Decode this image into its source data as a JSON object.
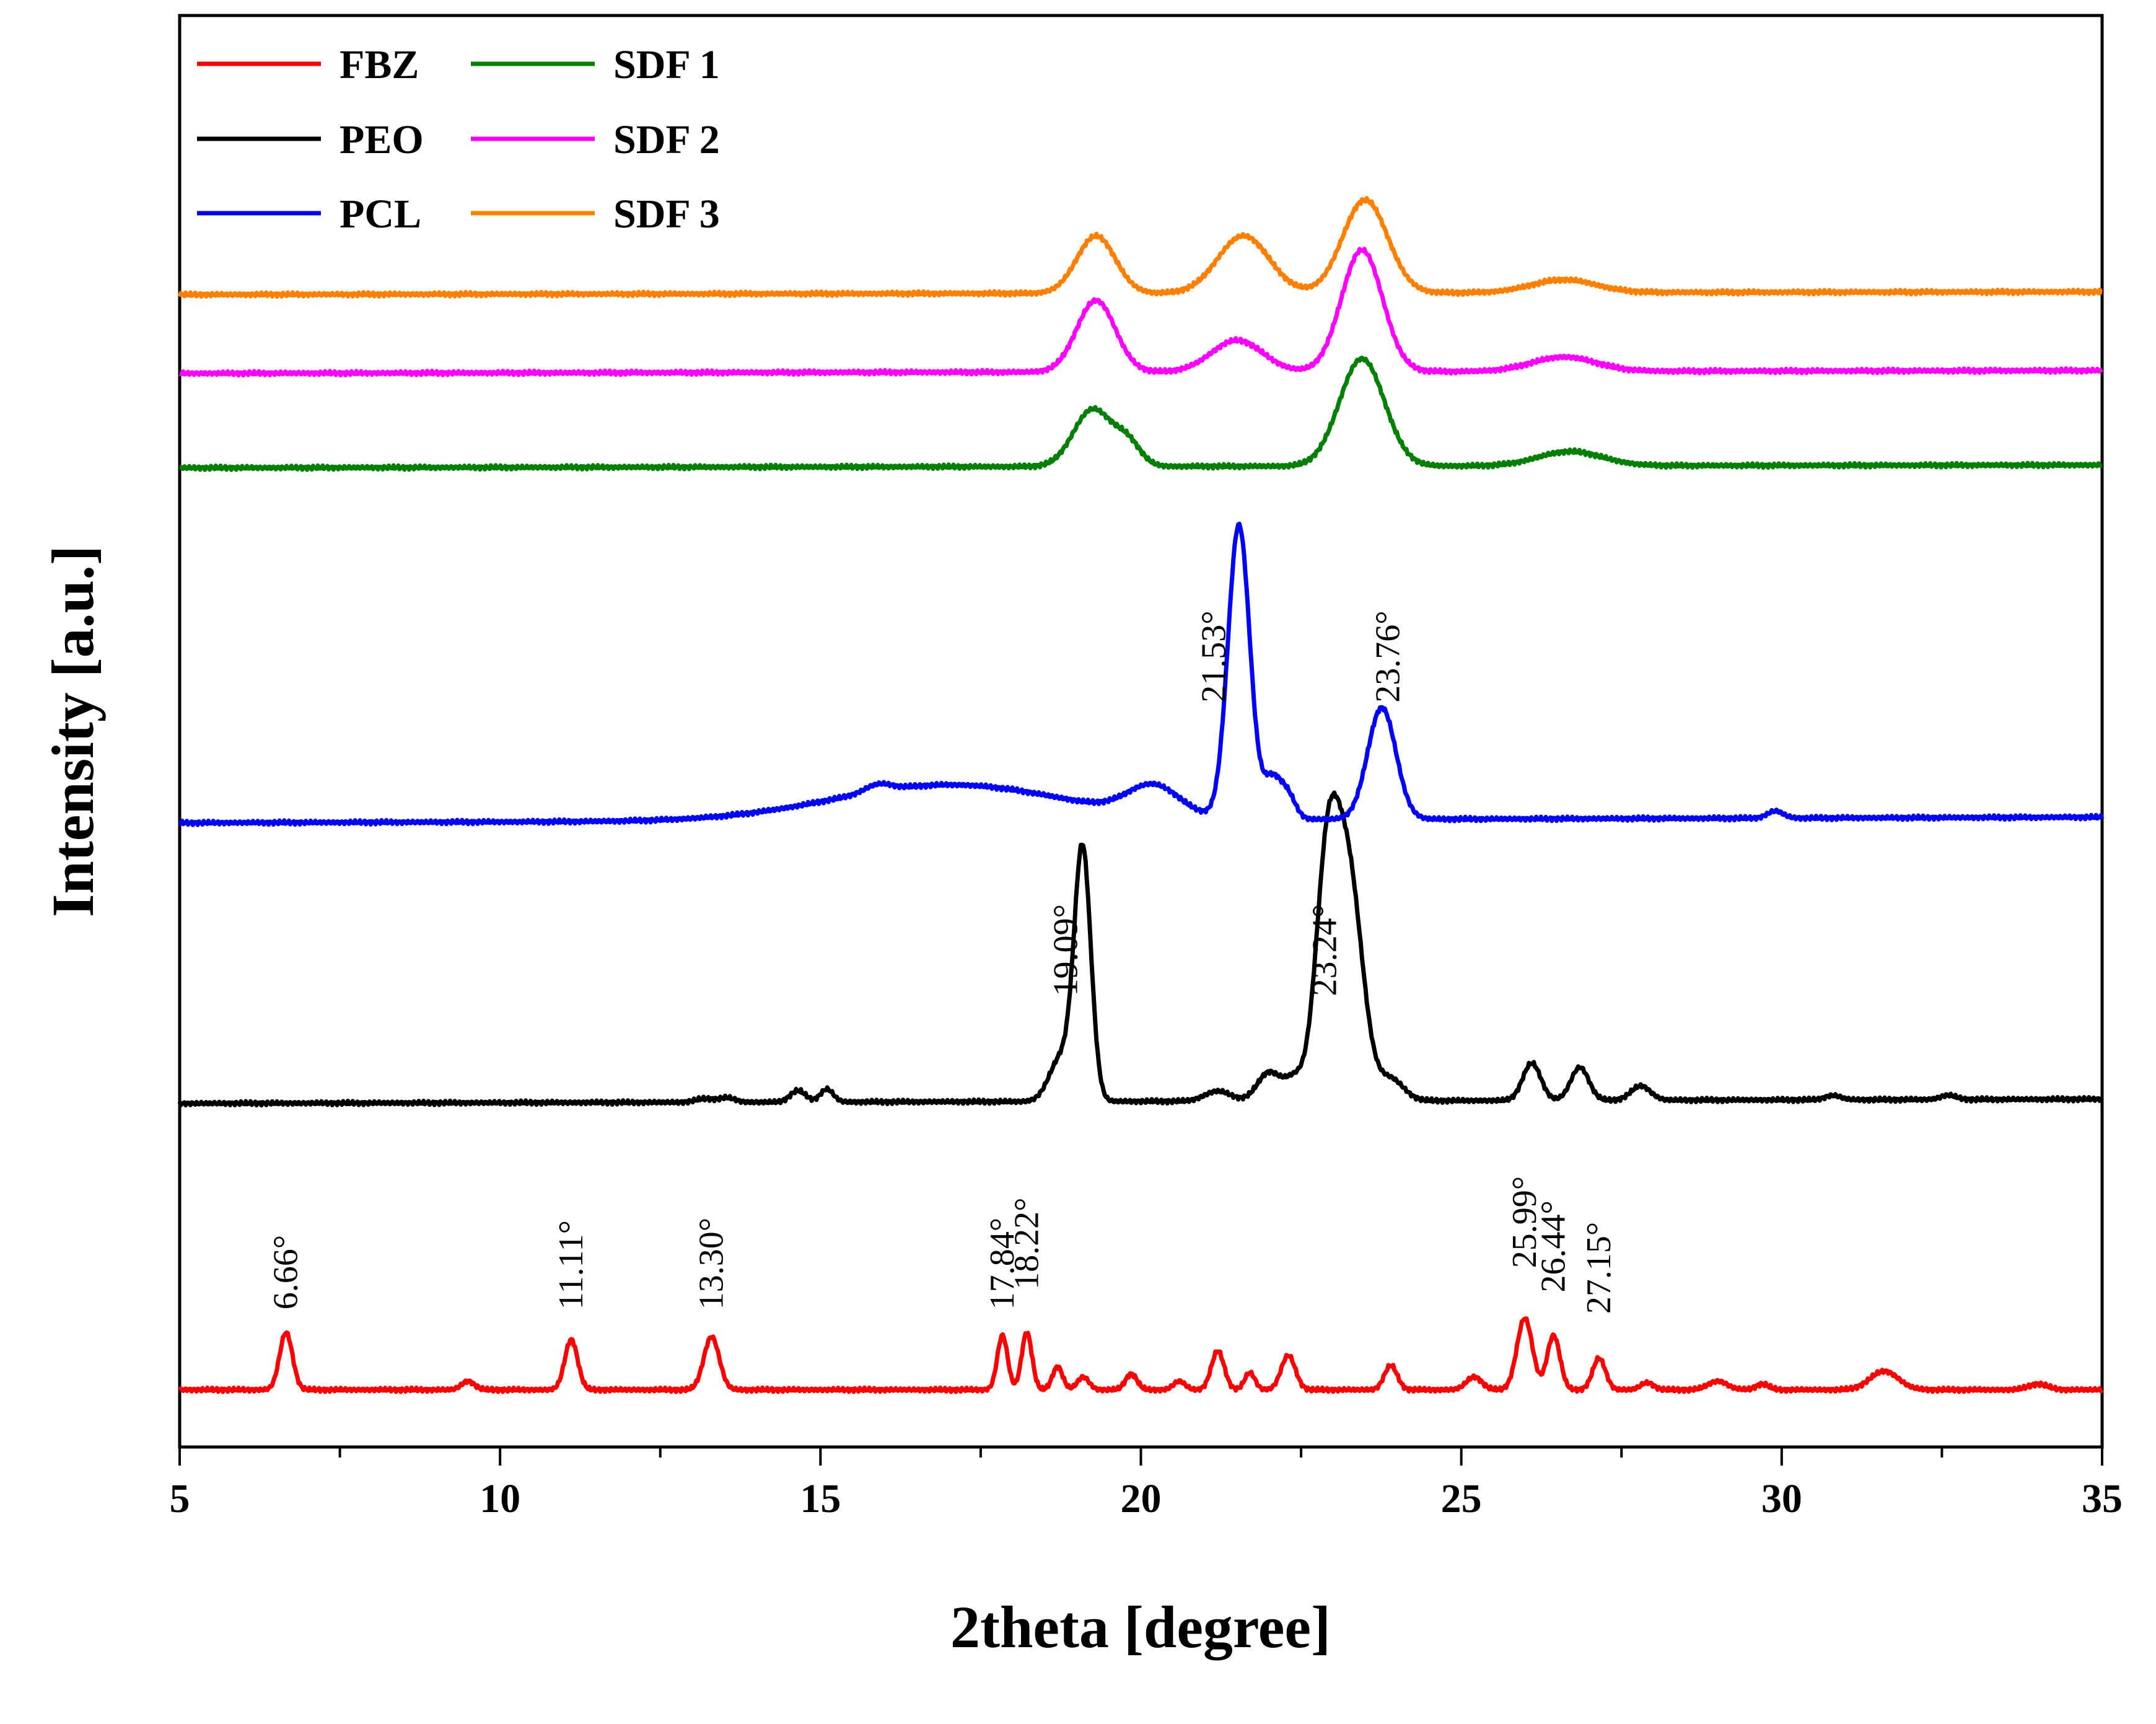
{
  "chart_data": {
    "type": "line",
    "title": "",
    "xlabel": "2theta [degree]",
    "ylabel": "Intensity [a.u.]",
    "xlim": [
      5,
      35
    ],
    "ylim": [
      0,
      100
    ],
    "xticks": [
      5,
      10,
      15,
      20,
      25,
      30,
      35
    ],
    "x_minor_step": 2.5,
    "yticks": [],
    "legend_position": "top-left",
    "series": [
      {
        "name": "FBZ",
        "color": "#ff0000",
        "baseline": 4.0,
        "drift": 0.0,
        "broad": [],
        "peaks": [
          [
            6.66,
            4.0,
            0.1
          ],
          [
            9.5,
            0.6,
            0.1
          ],
          [
            11.11,
            3.5,
            0.1
          ],
          [
            13.3,
            3.7,
            0.12
          ],
          [
            17.84,
            3.8,
            0.08
          ],
          [
            18.22,
            4.0,
            0.08
          ],
          [
            18.7,
            1.6,
            0.08
          ],
          [
            19.1,
            0.9,
            0.09
          ],
          [
            19.85,
            1.1,
            0.09
          ],
          [
            20.6,
            0.6,
            0.09
          ],
          [
            21.2,
            2.7,
            0.1
          ],
          [
            21.7,
            1.2,
            0.08
          ],
          [
            22.3,
            2.4,
            0.11
          ],
          [
            23.9,
            1.7,
            0.1
          ],
          [
            25.2,
            0.9,
            0.12
          ],
          [
            25.99,
            5.0,
            0.12
          ],
          [
            26.44,
            3.8,
            0.1
          ],
          [
            27.15,
            2.2,
            0.1
          ],
          [
            27.9,
            0.5,
            0.1
          ],
          [
            29.0,
            0.6,
            0.15
          ],
          [
            29.7,
            0.4,
            0.1
          ],
          [
            31.6,
            1.3,
            0.22
          ],
          [
            34.0,
            0.4,
            0.15
          ]
        ],
        "labels": [
          {
            "text": "6.66°",
            "x": 6.66,
            "y": 9.6
          },
          {
            "text": "11.11°",
            "x": 11.11,
            "y": 9.6
          },
          {
            "text": "13.30°",
            "x": 13.3,
            "y": 9.6
          },
          {
            "text": "17.84°",
            "x": 17.84,
            "y": 9.6
          },
          {
            "text": "18.22°",
            "x": 18.22,
            "y": 11.0
          },
          {
            "text": "25.99°",
            "x": 25.99,
            "y": 12.5
          },
          {
            "text": "26.44°",
            "x": 26.44,
            "y": 10.8
          },
          {
            "text": "27.15°",
            "x": 27.15,
            "y": 9.3
          }
        ]
      },
      {
        "name": "PEO",
        "color": "#000000",
        "baseline": 24.0,
        "drift": 0.3,
        "broad": [],
        "peaks": [
          [
            13.2,
            0.25,
            0.15
          ],
          [
            13.55,
            0.3,
            0.12
          ],
          [
            14.65,
            0.8,
            0.12
          ],
          [
            15.1,
            0.9,
            0.1
          ],
          [
            18.75,
            3.0,
            0.18
          ],
          [
            19.09,
            17.5,
            0.13
          ],
          [
            21.2,
            0.7,
            0.2
          ],
          [
            22.0,
            2.0,
            0.18
          ],
          [
            22.4,
            1.5,
            0.15
          ],
          [
            22.9,
            15.0,
            0.18
          ],
          [
            23.24,
            15.5,
            0.22
          ],
          [
            23.9,
            1.5,
            0.2
          ],
          [
            26.1,
            2.6,
            0.14
          ],
          [
            26.85,
            2.3,
            0.14
          ],
          [
            27.8,
            1.0,
            0.15
          ],
          [
            30.8,
            0.3,
            0.12
          ],
          [
            32.6,
            0.3,
            0.12
          ]
        ],
        "labels": [
          {
            "text": "19.09°",
            "x": 18.83,
            "y": 31.5
          },
          {
            "text": "23.24°",
            "x": 22.87,
            "y": 31.5
          }
        ]
      },
      {
        "name": "PCL",
        "color": "#0000ff",
        "baseline": 43.6,
        "drift": 0.4,
        "broad": [
          [
            17.0,
            2.5,
            1.8
          ]
        ],
        "peaks": [
          [
            15.9,
            0.5,
            0.2
          ],
          [
            20.2,
            2.0,
            0.4
          ],
          [
            21.53,
            20.5,
            0.17
          ],
          [
            22.05,
            2.8,
            0.14
          ],
          [
            22.3,
            1.5,
            0.12
          ],
          [
            23.76,
            7.8,
            0.22
          ],
          [
            29.9,
            0.5,
            0.12
          ]
        ],
        "labels": [
          {
            "text": "21.53°",
            "x": 21.14,
            "y": 52.0
          },
          {
            "text": "23.76°",
            "x": 23.86,
            "y": 52.0
          }
        ]
      },
      {
        "name": "SDF 1",
        "color": "#008000",
        "baseline": 68.4,
        "drift": 0.2,
        "broad": [],
        "peaks": [
          [
            19.25,
            4.0,
            0.3
          ],
          [
            19.8,
            1.5,
            0.2
          ],
          [
            23.45,
            7.5,
            0.35
          ],
          [
            26.7,
            1.0,
            0.5
          ]
        ],
        "labels": []
      },
      {
        "name": "SDF 2",
        "color": "#ff00ff",
        "baseline": 75.0,
        "drift": 0.2,
        "broad": [],
        "peaks": [
          [
            19.3,
            5.0,
            0.3
          ],
          [
            21.5,
            2.2,
            0.4
          ],
          [
            23.45,
            8.5,
            0.32
          ],
          [
            26.6,
            1.0,
            0.5
          ]
        ],
        "labels": []
      },
      {
        "name": "SDF 3",
        "color": "#ff8000",
        "baseline": 80.5,
        "drift": 0.2,
        "broad": [],
        "peaks": [
          [
            19.3,
            4.0,
            0.3
          ],
          [
            21.6,
            4.0,
            0.4
          ],
          [
            23.5,
            6.5,
            0.35
          ],
          [
            26.6,
            0.9,
            0.5
          ]
        ],
        "labels": []
      }
    ],
    "legend_columns": [
      [
        "FBZ",
        "PEO",
        "PCL"
      ],
      [
        "SDF 1",
        "SDF 2",
        "SDF 3"
      ]
    ]
  }
}
